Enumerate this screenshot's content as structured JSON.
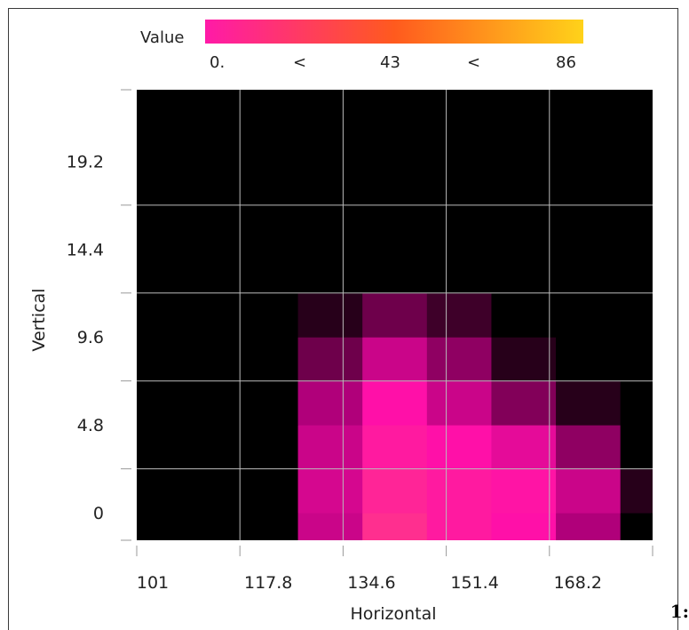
{
  "chart_data": {
    "type": "heatmap",
    "xlabel": "Horizontal",
    "ylabel": "Vertical",
    "xlim": [
      101,
      185
    ],
    "ylim": [
      -1.5,
      23.1
    ],
    "x_ticks": [
      "101",
      "117.8",
      "134.6",
      "151.4",
      "168.2"
    ],
    "x_tick_values": [
      101,
      117.8,
      134.6,
      151.4,
      168.2
    ],
    "y_ticks": [
      "0",
      "4.8",
      "9.6",
      "14.4",
      "19.2"
    ],
    "y_tick_values": [
      0,
      4.8,
      9.6,
      14.4,
      19.2
    ],
    "grid_x": [
      117.8,
      134.6,
      151.4,
      168.2
    ],
    "grid_y": [
      2.4,
      7.2,
      12.0,
      16.8
    ],
    "grid": true,
    "legend": {
      "title": "Value",
      "labels": [
        "0.",
        "<",
        "43",
        "<",
        "86"
      ],
      "placement": "top",
      "range": [
        0,
        86
      ],
      "colors": [
        "#ff1aa8",
        "#ff5a1e",
        "#ffd21a"
      ]
    },
    "colorscale": [
      {
        "value": 0,
        "color": "#000000"
      },
      {
        "value": 10,
        "color": "#4d0033"
      },
      {
        "value": 25,
        "color": "#b0007a"
      },
      {
        "value": 40,
        "color": "#ff10a8"
      },
      {
        "value": 55,
        "color": "#ff2f8f"
      },
      {
        "value": 70,
        "color": "#ff6a4f"
      },
      {
        "value": 86,
        "color": "#ffd21a"
      }
    ],
    "x": [
      101,
      111.5,
      122,
      132.5,
      143,
      153.5,
      164,
      174.5,
      185
    ],
    "y": [
      -1.2,
      1.2,
      3.6,
      6.0,
      8.4,
      10.8,
      13.2,
      15.6,
      18.0,
      20.4,
      22.8
    ],
    "z": [
      [
        0,
        0,
        0,
        30,
        55,
        45,
        40,
        25,
        0
      ],
      [
        0,
        0,
        0,
        32,
        50,
        45,
        42,
        30,
        5
      ],
      [
        0,
        0,
        0,
        30,
        45,
        40,
        35,
        20,
        0
      ],
      [
        0,
        0,
        0,
        25,
        40,
        30,
        18,
        5,
        0
      ],
      [
        0,
        0,
        0,
        15,
        30,
        20,
        5,
        0,
        0
      ],
      [
        0,
        0,
        0,
        5,
        15,
        8,
        0,
        0,
        0
      ],
      [
        0,
        0,
        0,
        0,
        0,
        0,
        0,
        0,
        0
      ],
      [
        0,
        0,
        0,
        0,
        0,
        0,
        0,
        0,
        0
      ],
      [
        0,
        0,
        0,
        0,
        0,
        0,
        0,
        0,
        0
      ],
      [
        0,
        0,
        0,
        0,
        0,
        0,
        0,
        0,
        0
      ],
      [
        0,
        0,
        0,
        0,
        0,
        0,
        0,
        0,
        0
      ]
    ]
  },
  "corner_fragment": "1:"
}
